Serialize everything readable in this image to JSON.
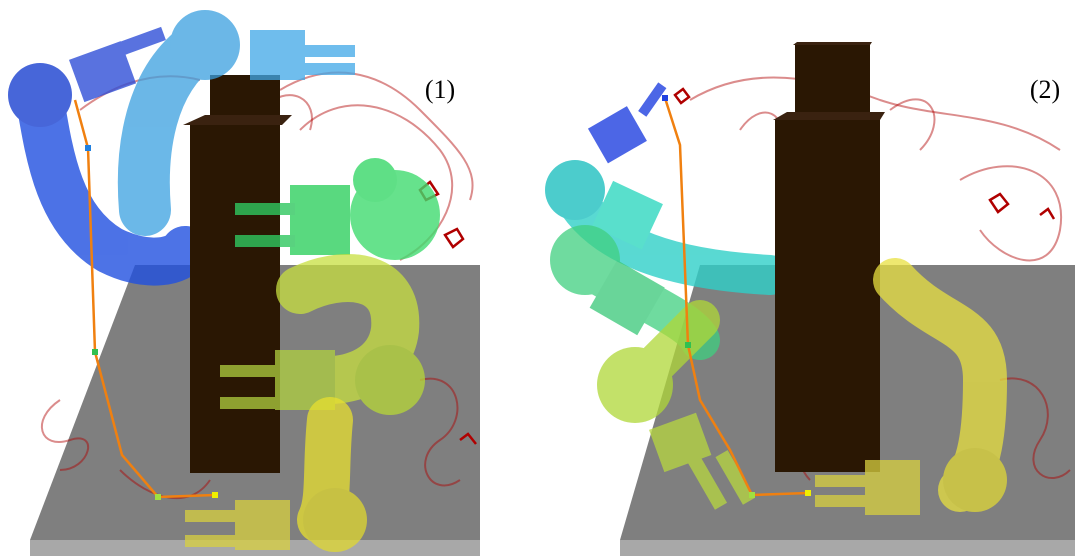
{
  "panels": [
    {
      "label": "(1)"
    },
    {
      "label": "(2)"
    }
  ]
}
